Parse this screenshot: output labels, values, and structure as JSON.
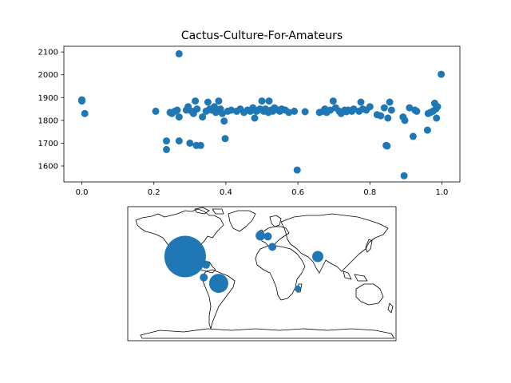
{
  "chart_data": [
    {
      "type": "scatter",
      "title": "Cactus-Culture-For-Amateurs",
      "xlabel": "",
      "ylabel": "",
      "xlim": [
        -0.05,
        1.05
      ],
      "ylim": [
        1530,
        2125
      ],
      "xticks": [
        "0.0",
        "0.2",
        "0.4",
        "0.6",
        "0.8",
        "1.0"
      ],
      "yticks": [
        "1600",
        "1700",
        "1800",
        "1900",
        "2000",
        "2100"
      ],
      "grid": false,
      "color": "#1f77b4",
      "points": [
        [
          0.0,
          1890
        ],
        [
          0.0,
          1885
        ],
        [
          0.008,
          1830
        ],
        [
          0.205,
          1840
        ],
        [
          0.235,
          1710
        ],
        [
          0.235,
          1672
        ],
        [
          0.245,
          1835
        ],
        [
          0.25,
          1830
        ],
        [
          0.258,
          1840
        ],
        [
          0.265,
          1845
        ],
        [
          0.27,
          1710
        ],
        [
          0.27,
          1815
        ],
        [
          0.27,
          2092
        ],
        [
          0.29,
          1845
        ],
        [
          0.295,
          1860
        ],
        [
          0.3,
          1700
        ],
        [
          0.305,
          1840
        ],
        [
          0.31,
          1830
        ],
        [
          0.315,
          1885
        ],
        [
          0.318,
          1690
        ],
        [
          0.32,
          1850
        ],
        [
          0.33,
          1690
        ],
        [
          0.335,
          1815
        ],
        [
          0.345,
          1840
        ],
        [
          0.35,
          1880
        ],
        [
          0.355,
          1850
        ],
        [
          0.36,
          1845
        ],
        [
          0.368,
          1860
        ],
        [
          0.372,
          1835
        ],
        [
          0.38,
          1885
        ],
        [
          0.385,
          1850
        ],
        [
          0.39,
          1830
        ],
        [
          0.395,
          1797
        ],
        [
          0.398,
          1720
        ],
        [
          0.405,
          1840
        ],
        [
          0.415,
          1845
        ],
        [
          0.43,
          1840
        ],
        [
          0.44,
          1850
        ],
        [
          0.45,
          1835
        ],
        [
          0.46,
          1845
        ],
        [
          0.468,
          1840
        ],
        [
          0.475,
          1855
        ],
        [
          0.48,
          1810
        ],
        [
          0.485,
          1840
        ],
        [
          0.49,
          1845
        ],
        [
          0.495,
          1850
        ],
        [
          0.5,
          1885
        ],
        [
          0.505,
          1840
        ],
        [
          0.51,
          1850
        ],
        [
          0.518,
          1835
        ],
        [
          0.52,
          1885
        ],
        [
          0.525,
          1845
        ],
        [
          0.53,
          1840
        ],
        [
          0.535,
          1855
        ],
        [
          0.545,
          1845
        ],
        [
          0.55,
          1840
        ],
        [
          0.555,
          1850
        ],
        [
          0.565,
          1845
        ],
        [
          0.575,
          1835
        ],
        [
          0.59,
          1840
        ],
        [
          0.598,
          1582
        ],
        [
          0.62,
          1838
        ],
        [
          0.66,
          1835
        ],
        [
          0.67,
          1840
        ],
        [
          0.675,
          1850
        ],
        [
          0.68,
          1835
        ],
        [
          0.69,
          1845
        ],
        [
          0.698,
          1885
        ],
        [
          0.705,
          1855
        ],
        [
          0.715,
          1840
        ],
        [
          0.72,
          1830
        ],
        [
          0.73,
          1845
        ],
        [
          0.735,
          1838
        ],
        [
          0.74,
          1845
        ],
        [
          0.75,
          1840
        ],
        [
          0.755,
          1850
        ],
        [
          0.77,
          1840
        ],
        [
          0.775,
          1880
        ],
        [
          0.78,
          1850
        ],
        [
          0.79,
          1845
        ],
        [
          0.8,
          1860
        ],
        [
          0.82,
          1825
        ],
        [
          0.83,
          1820
        ],
        [
          0.84,
          1855
        ],
        [
          0.845,
          1690
        ],
        [
          0.848,
          1688
        ],
        [
          0.85,
          1810
        ],
        [
          0.855,
          1880
        ],
        [
          0.86,
          1845
        ],
        [
          0.892,
          1815
        ],
        [
          0.895,
          1557
        ],
        [
          0.897,
          1800
        ],
        [
          0.91,
          1855
        ],
        [
          0.92,
          1730
        ],
        [
          0.925,
          1845
        ],
        [
          0.93,
          1840
        ],
        [
          0.96,
          1757
        ],
        [
          0.962,
          1830
        ],
        [
          0.968,
          1835
        ],
        [
          0.975,
          1840
        ],
        [
          0.98,
          1875
        ],
        [
          0.983,
          1850
        ],
        [
          0.985,
          1810
        ],
        [
          0.988,
          1860
        ],
        [
          0.998,
          2002
        ]
      ]
    },
    {
      "type": "map-bubble",
      "projection": "equirectangular",
      "color": "#1f77b4",
      "bubbles": [
        {
          "lon": -103,
          "lat": 23,
          "size": 26
        },
        {
          "lon": -88,
          "lat": 18,
          "size": 5
        },
        {
          "lon": -75,
          "lat": 12,
          "size": 5
        },
        {
          "lon": -78,
          "lat": -5,
          "size": 5
        },
        {
          "lon": -58,
          "lat": -13,
          "size": 12
        },
        {
          "lon": -2,
          "lat": 51,
          "size": 6
        },
        {
          "lon": 8,
          "lat": 50,
          "size": 5
        },
        {
          "lon": 14,
          "lat": 36,
          "size": 5
        },
        {
          "lon": 75,
          "lat": 23,
          "size": 7
        },
        {
          "lon": 48,
          "lat": -20,
          "size": 4
        }
      ]
    }
  ]
}
